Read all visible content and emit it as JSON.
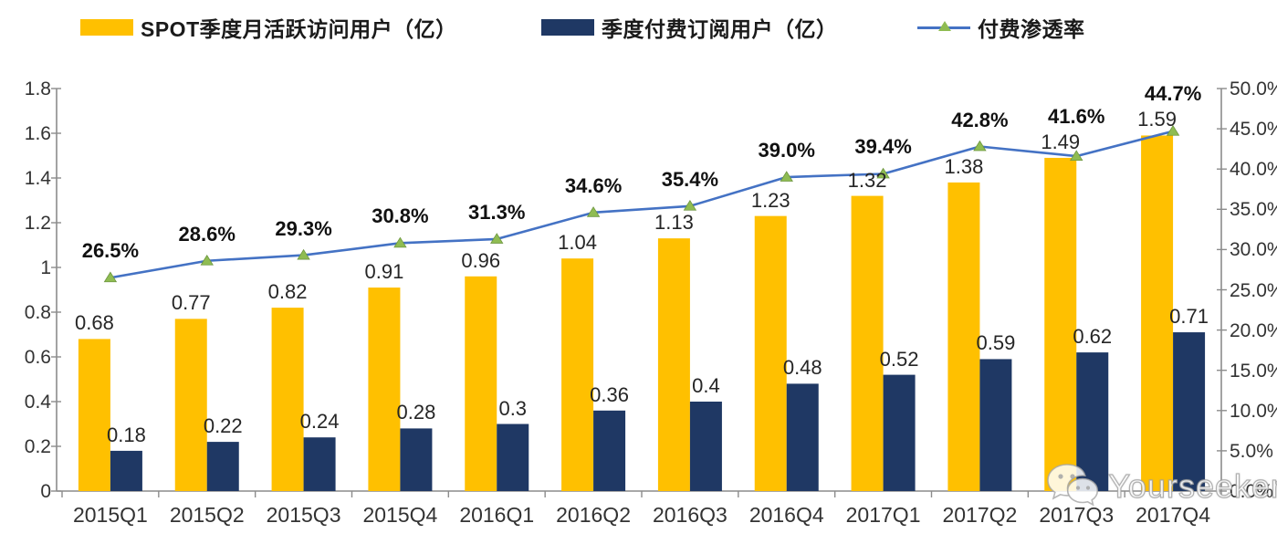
{
  "legend": {
    "items": [
      {
        "label": "SPOT季度月活跃访问用户（亿）",
        "color": "#FFC000",
        "type": "bar"
      },
      {
        "label": "季度付费订阅用户（亿）",
        "color": "#1F3864",
        "type": "bar"
      },
      {
        "label": "付费渗透率",
        "color": "#4472C4",
        "marker_color": "#8FBC52",
        "type": "line"
      }
    ]
  },
  "watermark": {
    "text": "Yourseeker",
    "icon": "wechat-icon"
  },
  "colors": {
    "mau_bar": "#FFC000",
    "subs_bar": "#1F3864",
    "penetration_line": "#4472C4",
    "penetration_marker": "#8FBC52",
    "axis": "#8c8c8c"
  },
  "chart_data": {
    "type": "bar",
    "subtype": "grouped-bars-with-line",
    "categories": [
      "2015Q1",
      "2015Q2",
      "2015Q3",
      "2015Q4",
      "2016Q1",
      "2016Q2",
      "2016Q3",
      "2016Q4",
      "2017Q1",
      "2017Q2",
      "2017Q3",
      "2017Q4"
    ],
    "series": [
      {
        "name": "SPOT季度月活跃访问用户（亿）",
        "type": "bar",
        "axis": "left",
        "color": "#FFC000",
        "values": [
          0.68,
          0.77,
          0.82,
          0.91,
          0.96,
          1.04,
          1.13,
          1.23,
          1.32,
          1.38,
          1.49,
          1.59
        ],
        "labels": [
          "0.68",
          "0.77",
          "0.82",
          "0.91",
          "0.96",
          "1.04",
          "1.13",
          "1.23",
          "1.32",
          "1.38",
          "1.49",
          "1.59"
        ]
      },
      {
        "name": "季度付费订阅用户（亿）",
        "type": "bar",
        "axis": "left",
        "color": "#1F3864",
        "values": [
          0.18,
          0.22,
          0.24,
          0.28,
          0.3,
          0.36,
          0.4,
          0.48,
          0.52,
          0.59,
          0.62,
          0.71
        ],
        "labels": [
          "0.18",
          "0.22",
          "0.24",
          "0.28",
          "0.3",
          "0.36",
          "0.4",
          "0.48",
          "0.52",
          "0.59",
          "0.62",
          "0.71"
        ]
      },
      {
        "name": "付费渗透率",
        "type": "line",
        "axis": "right",
        "color": "#4472C4",
        "marker": "triangle",
        "marker_color": "#8FBC52",
        "values": [
          26.5,
          28.6,
          29.3,
          30.8,
          31.3,
          34.6,
          35.4,
          39.0,
          39.4,
          42.8,
          41.6,
          44.7
        ],
        "labels": [
          "26.5%",
          "28.6%",
          "29.3%",
          "30.8%",
          "31.3%",
          "34.6%",
          "35.4%",
          "39.0%",
          "39.4%",
          "42.8%",
          "41.6%",
          "44.7%"
        ]
      }
    ],
    "left_axis": {
      "min": 0,
      "max": 1.8,
      "ticks": [
        "1.8",
        "1.6",
        "1.4",
        "1.2",
        "1",
        "0.8",
        "0.6",
        "0.4",
        "0.2",
        "0"
      ]
    },
    "right_axis": {
      "min": 0,
      "max": 50,
      "ticks": [
        "50.0%",
        "45.0%",
        "40.0%",
        "35.0%",
        "30.0%",
        "25.0%",
        "20.0%",
        "15.0%",
        "10.0%",
        "5.0%",
        "0.0%"
      ]
    },
    "grid": false,
    "legend_position": "top",
    "title": ""
  }
}
